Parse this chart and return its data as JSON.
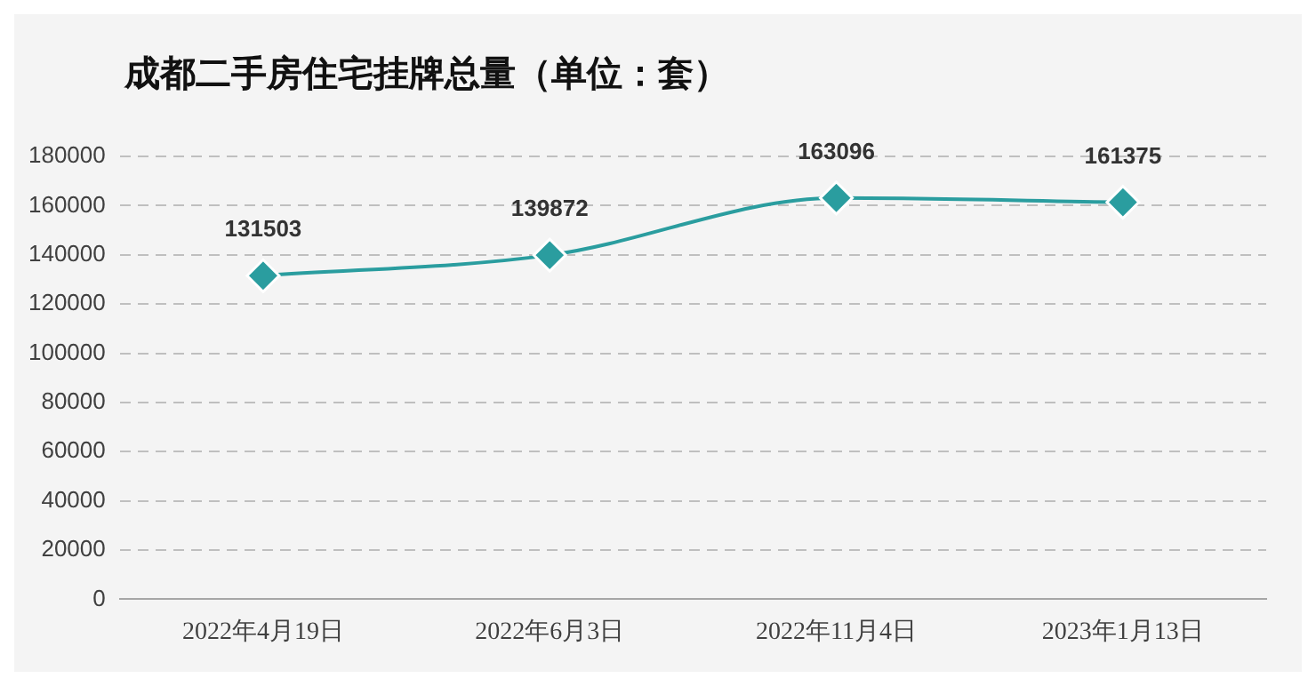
{
  "chart_data": {
    "type": "line",
    "title": "成都二手房住宅挂牌总量（单位：套）",
    "categories": [
      "2022年4月19日",
      "2022年6月3日",
      "2022年11月4日",
      "2023年1月13日"
    ],
    "series": [
      {
        "color": "#2a9d9f",
        "values": [
          131503,
          139872,
          163096,
          161375
        ]
      }
    ],
    "ylim": [
      0,
      180000
    ],
    "yticks": [
      0,
      20000,
      40000,
      60000,
      80000,
      100000,
      120000,
      140000,
      160000,
      180000
    ],
    "grid": "y",
    "legend": false,
    "marker": "diamond",
    "line_style": "solid",
    "data_labels": true
  }
}
